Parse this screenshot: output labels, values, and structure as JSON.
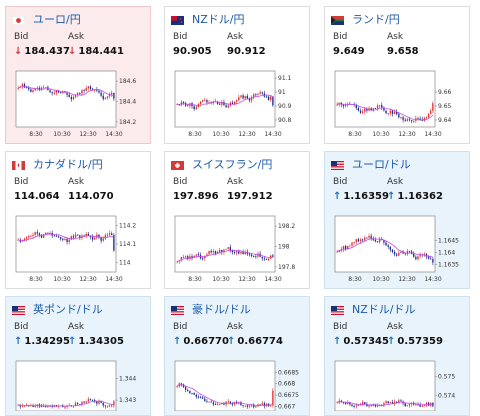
{
  "labels": {
    "bid": "Bid",
    "ask": "Ask"
  },
  "colors": {
    "down_arrow": "#d43a3a",
    "up_arrow": "#1f6fc4",
    "title": "#1a5aa8",
    "ma_line": "#c050e8",
    "bull_candle": "#e03030",
    "bear_candle": "#1c2a8c"
  },
  "cards": [
    {
      "title": "ユーロ/円",
      "flag": "jp-flag-icon",
      "bid": "184.437",
      "ask": "184.441",
      "trend": "down",
      "chart": {
        "ymin": 184.15,
        "ymax": 184.7,
        "yticks": [
          "184.6",
          "184.4",
          "184.2"
        ],
        "ytick_values": [
          184.6,
          184.4,
          184.2
        ],
        "xticks": [
          "8:30",
          "10:30",
          "12:30",
          "14:30"
        ],
        "last": 184.43
      }
    },
    {
      "title": "NZドル/円",
      "flag": "nz-flag-icon",
      "bid": "90.905",
      "ask": "90.912",
      "trend": "none",
      "chart": {
        "ymin": 90.75,
        "ymax": 91.15,
        "yticks": [
          "91.1",
          "91",
          "90.9",
          "90.8"
        ],
        "ytick_values": [
          91.1,
          91.0,
          90.9,
          90.8
        ],
        "xticks": [
          "8:30",
          "10:30",
          "12:30",
          "14:30"
        ],
        "last": 90.905
      }
    },
    {
      "title": "ランド/円",
      "flag": "za-flag-icon",
      "bid": "9.649",
      "ask": "9.658",
      "trend": "none",
      "chart": {
        "ymin": 9.635,
        "ymax": 9.675,
        "yticks": [
          "9.66",
          "9.65",
          "9.64"
        ],
        "ytick_values": [
          9.66,
          9.65,
          9.64
        ],
        "xticks": [
          "8:30",
          "10:30",
          "12:30",
          "14:30"
        ],
        "last": 9.652
      }
    },
    {
      "title": "カナダドル/円",
      "flag": "ca-flag-icon",
      "bid": "114.064",
      "ask": "114.070",
      "trend": "none",
      "chart": {
        "ymin": 113.95,
        "ymax": 114.25,
        "yticks": [
          "114.2",
          "114.1",
          "114"
        ],
        "ytick_values": [
          114.2,
          114.1,
          114.0
        ],
        "xticks": [
          "8:30",
          "10:30",
          "12:30",
          "14:30"
        ],
        "last": 114.065
      }
    },
    {
      "title": "スイスフラン/円",
      "flag": "ch-flag-icon",
      "bid": "197.896",
      "ask": "197.912",
      "trend": "none",
      "chart": {
        "ymin": 197.75,
        "ymax": 198.3,
        "yticks": [
          "198.2",
          "198",
          "197.8"
        ],
        "ytick_values": [
          198.2,
          198.0,
          197.8
        ],
        "xticks": [
          "8:30",
          "10:30",
          "12:30",
          "14:30"
        ],
        "last": 197.9
      }
    },
    {
      "title": "ユーロ/ドル",
      "flag": "us-flag-icon",
      "bid": "1.16359",
      "ask": "1.16362",
      "trend": "up",
      "chart": {
        "ymin": 1.1632,
        "ymax": 1.1655,
        "yticks": [
          "1.1645",
          "1.164",
          "1.1635"
        ],
        "ytick_values": [
          1.1645,
          1.164,
          1.1635
        ],
        "xticks": [
          "8:30",
          "10:30",
          "12:30",
          "14:30"
        ],
        "last": 1.16359
      }
    },
    {
      "title": "英ポンド/ドル",
      "flag": "us-flag-icon",
      "bid": "1.34295",
      "ask": "1.34305",
      "trend": "up",
      "chart": {
        "ymin": 1.3425,
        "ymax": 1.3448,
        "yticks": [
          "1.344",
          "1.343"
        ],
        "ytick_values": [
          1.344,
          1.343
        ],
        "xticks": [],
        "last": 1.34295
      }
    },
    {
      "title": "豪ドル/ドル",
      "flag": "us-flag-icon",
      "bid": "0.66770",
      "ask": "0.66774",
      "trend": "up",
      "chart": {
        "ymin": 0.6668,
        "ymax": 0.669,
        "yticks": [
          "0.6685",
          "0.668",
          "0.6675",
          "0.667"
        ],
        "ytick_values": [
          0.6685,
          0.668,
          0.6675,
          0.667
        ],
        "xticks": [],
        "last": 0.6677
      }
    },
    {
      "title": "NZドル/ドル",
      "flag": "us-flag-icon",
      "bid": "0.57345",
      "ask": "0.57359",
      "trend": "up",
      "chart": {
        "ymin": 0.5732,
        "ymax": 0.5758,
        "yticks": [
          "0.575",
          "0.574"
        ],
        "ytick_values": [
          0.575,
          0.574
        ],
        "xticks": [],
        "last": 0.57345
      }
    }
  ]
}
